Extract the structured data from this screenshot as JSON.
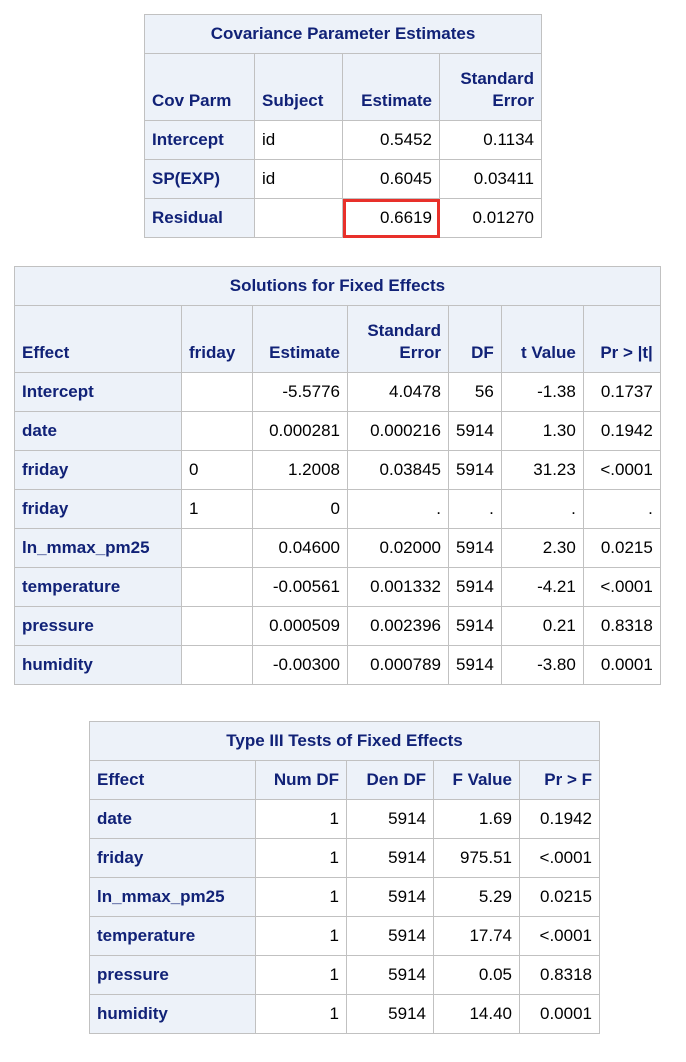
{
  "covariance": {
    "title": "Covariance Parameter Estimates",
    "headers": [
      "Cov Parm",
      "Subject",
      "Estimate",
      "Standard\nError"
    ],
    "rows": [
      [
        "Intercept",
        "id",
        "0.5452",
        "0.1134"
      ],
      [
        "SP(EXP)",
        "id",
        "0.6045",
        "0.03411"
      ],
      [
        "Residual",
        "",
        "0.6619",
        "0.01270"
      ]
    ]
  },
  "fixed_effects": {
    "title": "Solutions for Fixed Effects",
    "headers": [
      "Effect",
      "friday",
      "Estimate",
      "Standard\nError",
      "DF",
      "t Value",
      "Pr > |t|"
    ],
    "rows": [
      [
        "Intercept",
        "",
        "-5.5776",
        "4.0478",
        "56",
        "-1.38",
        "0.1737"
      ],
      [
        "date",
        "",
        "0.000281",
        "0.000216",
        "5914",
        "1.30",
        "0.1942"
      ],
      [
        "friday",
        "0",
        "1.2008",
        "0.03845",
        "5914",
        "31.23",
        "<.0001"
      ],
      [
        "friday",
        "1",
        "0",
        ".",
        ".",
        ".",
        "."
      ],
      [
        "ln_mmax_pm25",
        "",
        "0.04600",
        "0.02000",
        "5914",
        "2.30",
        "0.0215"
      ],
      [
        "temperature",
        "",
        "-0.00561",
        "0.001332",
        "5914",
        "-4.21",
        "<.0001"
      ],
      [
        "pressure",
        "",
        "0.000509",
        "0.002396",
        "5914",
        "0.21",
        "0.8318"
      ],
      [
        "humidity",
        "",
        "-0.00300",
        "0.000789",
        "5914",
        "-3.80",
        "0.0001"
      ]
    ]
  },
  "type3": {
    "title": "Type III Tests of Fixed Effects",
    "headers": [
      "Effect",
      "Num DF",
      "Den DF",
      "F Value",
      "Pr > F"
    ],
    "rows": [
      [
        "date",
        "1",
        "5914",
        "1.69",
        "0.1942"
      ],
      [
        "friday",
        "1",
        "5914",
        "975.51",
        "<.0001"
      ],
      [
        "ln_mmax_pm25",
        "1",
        "5914",
        "5.29",
        "0.0215"
      ],
      [
        "temperature",
        "1",
        "5914",
        "17.74",
        "<.0001"
      ],
      [
        "pressure",
        "1",
        "5914",
        "0.05",
        "0.8318"
      ],
      [
        "humidity",
        "1",
        "5914",
        "14.40",
        "0.0001"
      ]
    ]
  },
  "highlight": {
    "color": "#e8302a",
    "table": "covariance",
    "row": 2,
    "col": 2
  }
}
